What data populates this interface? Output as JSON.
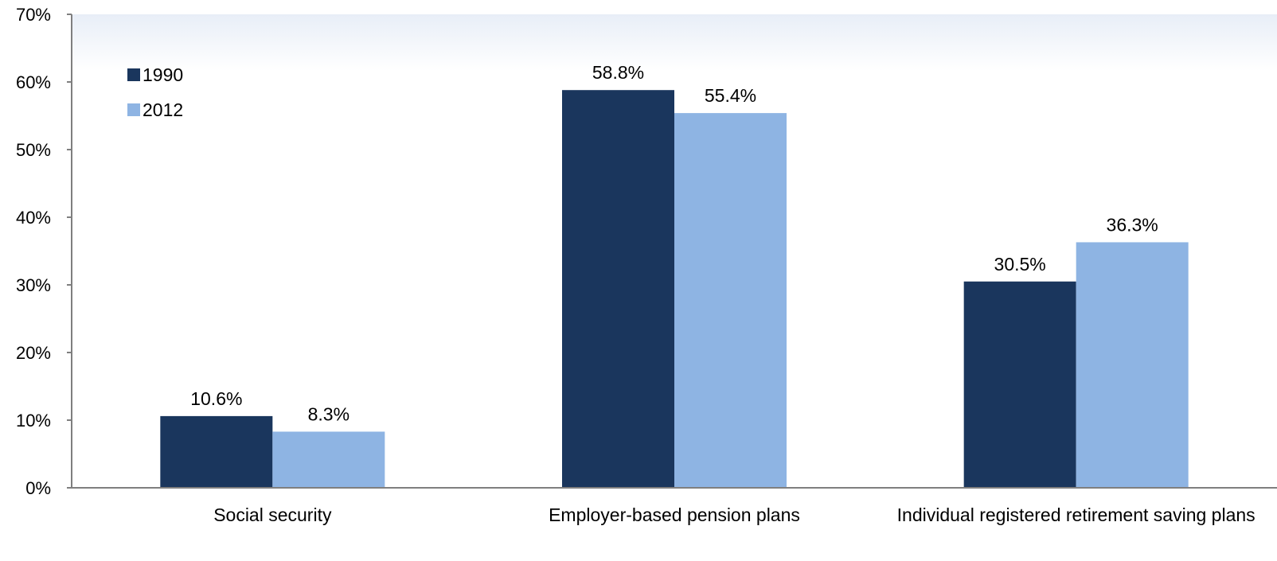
{
  "chart_data": {
    "type": "bar",
    "categories": [
      "Social security",
      "Employer-based pension plans",
      "Individual registered retirement  saving plans"
    ],
    "series": [
      {
        "name": "1990",
        "values": [
          10.6,
          58.8,
          30.5
        ],
        "labels": [
          "10.6%",
          "58.8%",
          "30.5%"
        ],
        "color": "#1a365d"
      },
      {
        "name": "2012",
        "values": [
          8.3,
          55.4,
          36.3
        ],
        "labels": [
          "8.3%",
          "55.4%",
          "36.3%"
        ],
        "color": "#8eb4e3"
      }
    ],
    "ylim": [
      0,
      70
    ],
    "yticks": [
      0,
      10,
      20,
      30,
      40,
      50,
      60,
      70
    ],
    "ytick_labels": [
      "0%",
      "10%",
      "20%",
      "30%",
      "40%",
      "50%",
      "60%",
      "70%"
    ],
    "xlabel": "",
    "ylabel": "",
    "legend_position": "top-left",
    "grid": false,
    "axis_color": "#7f7f7f"
  }
}
